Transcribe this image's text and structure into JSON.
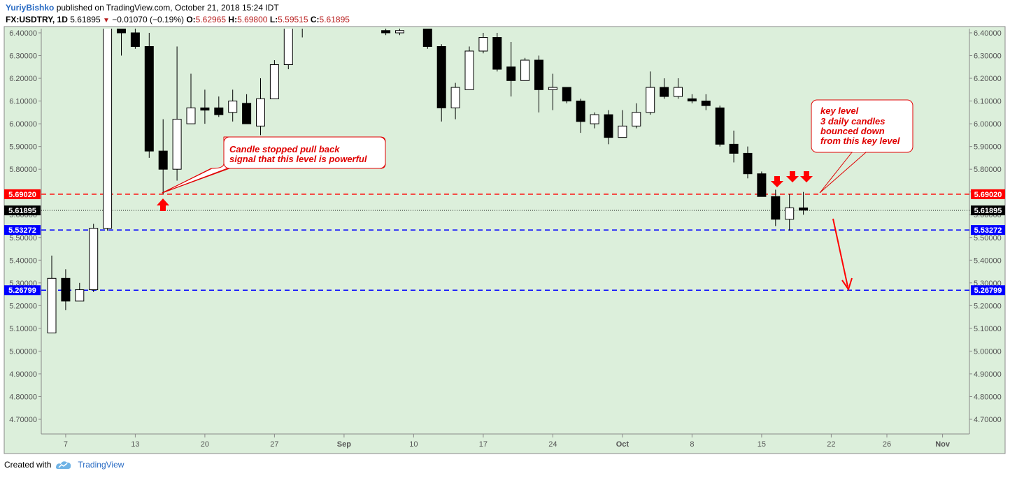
{
  "header": {
    "author": "YuriyBishko",
    "published_text": "published on TradingView.com, October 21, 2018 15:24 IDT",
    "symbol": "FX:USDTRY, 1D",
    "last_price": "5.61895",
    "change": "−0.01070 (−0.19%)",
    "o_label": "O:",
    "o_value": "5.62965",
    "h_label": "H:",
    "h_value": "5.69800",
    "l_label": "L:",
    "l_value": "5.59515",
    "c_label": "C:",
    "c_value": "5.61895"
  },
  "footer": {
    "created_with": "Created with",
    "brand": "TradingView"
  },
  "colors": {
    "plot_bg": "#dcefdb",
    "red_line": "#ff0000",
    "blue_line": "#0000ff",
    "up_candle": "#ffffff",
    "down_candle": "#000000",
    "annotation_text": "#e00000"
  },
  "chart_data": {
    "type": "candlestick",
    "ylim": [
      4.64,
      6.41
    ],
    "y_ticks": [
      "6.40000",
      "6.30000",
      "6.20000",
      "6.10000",
      "6.00000",
      "5.90000",
      "5.80000",
      "5.70000",
      "5.60000",
      "5.50000",
      "5.40000",
      "5.30000",
      "5.20000",
      "5.10000",
      "5.00000",
      "4.90000",
      "4.80000",
      "4.70000"
    ],
    "x_ticks": [
      {
        "label": "7",
        "day": 7
      },
      {
        "label": "13",
        "day": 12
      },
      {
        "label": "20",
        "day": 17
      },
      {
        "label": "27",
        "day": 22
      },
      {
        "label": "Sep",
        "day": 27
      },
      {
        "label": "10",
        "day": 32
      },
      {
        "label": "17",
        "day": 37
      },
      {
        "label": "24",
        "day": 42
      },
      {
        "label": "Oct",
        "day": 47
      },
      {
        "label": "8",
        "day": 52
      },
      {
        "label": "15",
        "day": 57
      },
      {
        "label": "22",
        "day": 62
      },
      {
        "label": "26",
        "day": 66
      },
      {
        "label": "Nov",
        "day": 70
      }
    ],
    "candles": [
      {
        "day": 6,
        "o": 5.08,
        "h": 5.42,
        "l": 5.08,
        "c": 5.32
      },
      {
        "day": 7,
        "o": 5.32,
        "h": 5.36,
        "l": 5.18,
        "c": 5.22
      },
      {
        "day": 8,
        "o": 5.22,
        "h": 5.3,
        "l": 5.22,
        "c": 5.27
      },
      {
        "day": 9,
        "o": 5.27,
        "h": 5.56,
        "l": 5.26,
        "c": 5.54
      },
      {
        "day": 10,
        "o": 5.54,
        "h": 6.9,
        "l": 5.53,
        "c": 6.9
      },
      {
        "day": 11,
        "o": 6.9,
        "h": 6.95,
        "l": 6.3,
        "c": 6.4
      },
      {
        "day": 12,
        "o": 6.4,
        "h": 6.45,
        "l": 6.33,
        "c": 6.34
      },
      {
        "day": 13,
        "o": 6.34,
        "h": 6.4,
        "l": 5.85,
        "c": 5.88
      },
      {
        "day": 14,
        "o": 5.88,
        "h": 6.02,
        "l": 5.69,
        "c": 5.8
      },
      {
        "day": 15,
        "o": 5.8,
        "h": 6.34,
        "l": 5.75,
        "c": 6.02
      },
      {
        "day": 16,
        "o": 6.0,
        "h": 6.22,
        "l": 6.0,
        "c": 6.07
      },
      {
        "day": 17,
        "o": 6.07,
        "h": 6.15,
        "l": 6.0,
        "c": 6.06
      },
      {
        "day": 18,
        "o": 6.07,
        "h": 6.12,
        "l": 6.03,
        "c": 6.04
      },
      {
        "day": 19,
        "o": 6.05,
        "h": 6.15,
        "l": 6.01,
        "c": 6.1
      },
      {
        "day": 20,
        "o": 6.09,
        "h": 6.13,
        "l": 6.0,
        "c": 6.0
      },
      {
        "day": 21,
        "o": 5.99,
        "h": 6.2,
        "l": 5.95,
        "c": 6.11
      },
      {
        "day": 22,
        "o": 6.11,
        "h": 6.28,
        "l": 6.11,
        "c": 6.26
      },
      {
        "day": 23,
        "o": 6.26,
        "h": 6.6,
        "l": 6.24,
        "c": 6.55
      },
      {
        "day": 24,
        "o": 6.5,
        "h": 6.55,
        "l": 6.38,
        "c": 6.45
      },
      {
        "day": 30,
        "o": 6.41,
        "h": 6.43,
        "l": 6.39,
        "c": 6.4
      },
      {
        "day": 31,
        "o": 6.4,
        "h": 6.42,
        "l": 6.39,
        "c": 6.41
      },
      {
        "day": 33,
        "o": 6.42,
        "h": 6.45,
        "l": 6.33,
        "c": 6.34
      },
      {
        "day": 34,
        "o": 6.34,
        "h": 6.35,
        "l": 6.01,
        "c": 6.07
      },
      {
        "day": 35,
        "o": 6.07,
        "h": 6.18,
        "l": 6.02,
        "c": 6.16
      },
      {
        "day": 36,
        "o": 6.15,
        "h": 6.34,
        "l": 6.15,
        "c": 6.32
      },
      {
        "day": 37,
        "o": 6.32,
        "h": 6.4,
        "l": 6.31,
        "c": 6.38
      },
      {
        "day": 38,
        "o": 6.38,
        "h": 6.4,
        "l": 6.23,
        "c": 6.24
      },
      {
        "day": 39,
        "o": 6.25,
        "h": 6.36,
        "l": 6.12,
        "c": 6.19
      },
      {
        "day": 40,
        "o": 6.19,
        "h": 6.29,
        "l": 6.19,
        "c": 6.28
      },
      {
        "day": 41,
        "o": 6.28,
        "h": 6.3,
        "l": 6.05,
        "c": 6.15
      },
      {
        "day": 42,
        "o": 6.15,
        "h": 6.22,
        "l": 6.06,
        "c": 6.16
      },
      {
        "day": 43,
        "o": 6.16,
        "h": 6.16,
        "l": 6.09,
        "c": 6.1
      },
      {
        "day": 44,
        "o": 6.1,
        "h": 6.11,
        "l": 5.96,
        "c": 6.01
      },
      {
        "day": 45,
        "o": 6.0,
        "h": 6.05,
        "l": 5.98,
        "c": 6.04
      },
      {
        "day": 46,
        "o": 6.04,
        "h": 6.06,
        "l": 5.91,
        "c": 5.94
      },
      {
        "day": 47,
        "o": 5.94,
        "h": 6.06,
        "l": 5.94,
        "c": 5.99
      },
      {
        "day": 48,
        "o": 5.99,
        "h": 6.09,
        "l": 5.98,
        "c": 6.05
      },
      {
        "day": 49,
        "o": 6.05,
        "h": 6.23,
        "l": 6.04,
        "c": 6.16
      },
      {
        "day": 50,
        "o": 6.16,
        "h": 6.2,
        "l": 6.11,
        "c": 6.12
      },
      {
        "day": 51,
        "o": 6.12,
        "h": 6.2,
        "l": 6.11,
        "c": 6.16
      },
      {
        "day": 52,
        "o": 6.11,
        "h": 6.13,
        "l": 6.09,
        "c": 6.1
      },
      {
        "day": 53,
        "o": 6.1,
        "h": 6.13,
        "l": 6.06,
        "c": 6.08
      },
      {
        "day": 54,
        "o": 6.07,
        "h": 6.08,
        "l": 5.9,
        "c": 5.91
      },
      {
        "day": 55,
        "o": 5.91,
        "h": 5.97,
        "l": 5.83,
        "c": 5.87
      },
      {
        "day": 56,
        "o": 5.87,
        "h": 5.9,
        "l": 5.76,
        "c": 5.78
      },
      {
        "day": 57,
        "o": 5.78,
        "h": 5.79,
        "l": 5.68,
        "c": 5.68
      },
      {
        "day": 58,
        "o": 5.68,
        "h": 5.71,
        "l": 5.55,
        "c": 5.58
      },
      {
        "day": 59,
        "o": 5.58,
        "h": 5.69,
        "l": 5.53,
        "c": 5.63
      },
      {
        "day": 60,
        "o": 5.63,
        "h": 5.7,
        "l": 5.6,
        "c": 5.62
      }
    ],
    "levels": [
      {
        "value": 5.6902,
        "label": "5.69020",
        "color": "#ff0000"
      },
      {
        "value": 5.61895,
        "label": "5.61895",
        "color": "#000000"
      },
      {
        "value": 5.53272,
        "label": "5.53272",
        "color": "#0000ff"
      },
      {
        "value": 5.26799,
        "label": "5.26799",
        "color": "#0000ff"
      }
    ],
    "annotations": [
      {
        "lines": [
          "Candle stopped pull back",
          "signal that this level is powerful"
        ]
      },
      {
        "lines": [
          "key level",
          "3 daily candles",
          "bounced down",
          "from this key level"
        ]
      }
    ]
  }
}
